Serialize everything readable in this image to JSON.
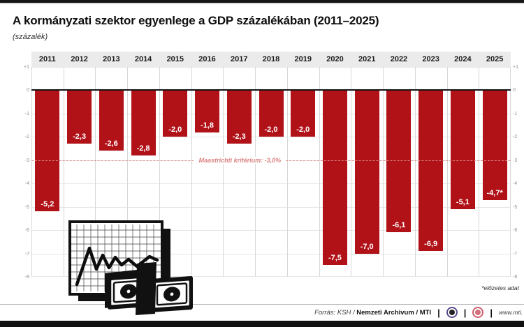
{
  "header": {
    "title": "A kormányzati szektor egyenlege a GDP százalékában (2011–2025)",
    "subtitle": "(százalék)"
  },
  "chart_data": {
    "type": "bar",
    "categories": [
      "2011",
      "2012",
      "2013",
      "2014",
      "2015",
      "2016",
      "2017",
      "2018",
      "2019",
      "2020",
      "2021",
      "2022",
      "2023",
      "2024",
      "2025"
    ],
    "values": [
      -5.2,
      -2.3,
      -2.6,
      -2.8,
      -2.0,
      -1.8,
      -2.3,
      -2.0,
      -2.0,
      -7.5,
      -7.0,
      -6.1,
      -6.9,
      -5.1,
      -4.7
    ],
    "value_labels": [
      "-5,2",
      "-2,3",
      "-2,6",
      "-2,8",
      "-2,0",
      "-1,8",
      "-2,3",
      "-2,0",
      "-2,0",
      "-7,5",
      "-7,0",
      "-6,1",
      "-6,9",
      "-5,1",
      "-4,7*"
    ],
    "title": "A kormányzati szektor egyenlege a GDP százalékában (2011–2025)",
    "xlabel": "",
    "ylabel": "százalék",
    "ylim": [
      -8,
      1
    ],
    "y_ticks": [
      "+1",
      "0",
      "-1",
      "-2",
      "-3",
      "-4",
      "-5",
      "-6",
      "-7",
      "-8"
    ],
    "grid": true,
    "reference_line": {
      "value": -3.0,
      "label": "Maastrichti kritérium: -3,0%"
    },
    "bar_color": "#b11218",
    "reference_color": "#d9827f",
    "note": "*előzetes adat"
  },
  "footer": {
    "source_prefix": "Forrás: KSH /",
    "source_bold": "Nemzeti Archivum",
    "source_suffix": "/ MTI",
    "separator": "|",
    "logos": [
      "mtva-logo",
      "mti-logo"
    ],
    "website": "www.mti."
  }
}
